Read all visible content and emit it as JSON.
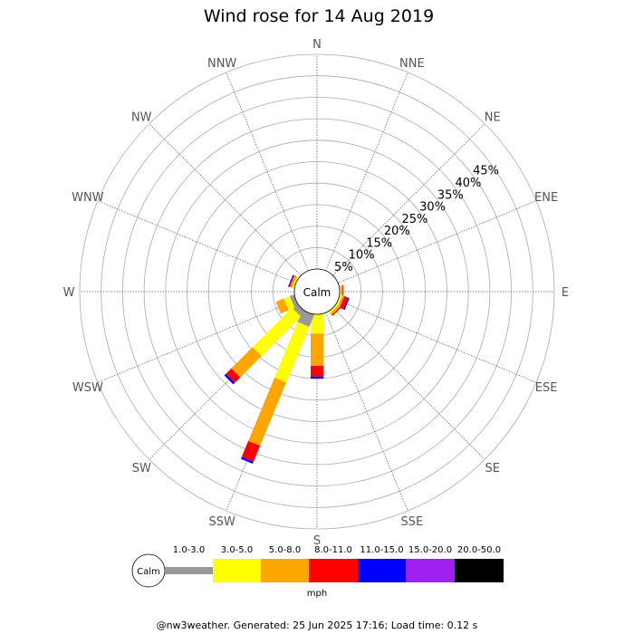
{
  "chart_data": {
    "type": "wind-rose",
    "title": "Wind rose for 14 Aug 2019",
    "directions": [
      "N",
      "NNE",
      "NE",
      "ENE",
      "E",
      "ESE",
      "SE",
      "SSE",
      "S",
      "SSW",
      "SW",
      "WSW",
      "W",
      "WNW",
      "NW",
      "NNW"
    ],
    "radial_ticks": [
      "5%",
      "10%",
      "15%",
      "20%",
      "25%",
      "30%",
      "35%",
      "40%",
      "45%"
    ],
    "rmax_percent": 50,
    "calm_label": "Calm",
    "units": "mph",
    "bins": [
      {
        "label": "1.0-3.0",
        "color": "#999999"
      },
      {
        "label": "3.0-5.0",
        "color": "#ffff00"
      },
      {
        "label": "5.0-8.0",
        "color": "#ffa500"
      },
      {
        "label": "8.0-11.0",
        "color": "#ff0000"
      },
      {
        "label": "11.0-15.0",
        "color": "#0000ff"
      },
      {
        "label": "15.0-20.0",
        "color": "#a020f0"
      },
      {
        "label": "20.0-50.0",
        "color": "#000000"
      }
    ],
    "series": [
      {
        "direction": "N",
        "values": [
          0,
          0,
          0,
          0,
          0,
          0,
          0
        ]
      },
      {
        "direction": "NNE",
        "values": [
          0,
          0,
          0,
          0,
          0,
          0,
          0
        ]
      },
      {
        "direction": "NE",
        "values": [
          0,
          0,
          0,
          0,
          0,
          0,
          0
        ]
      },
      {
        "direction": "ENE",
        "values": [
          0,
          0,
          0,
          0,
          0,
          0,
          0
        ]
      },
      {
        "direction": "E",
        "values": [
          0,
          0.3,
          0.3,
          0.2,
          0,
          0,
          0
        ]
      },
      {
        "direction": "ESE",
        "values": [
          0,
          0.5,
          0.5,
          1.0,
          0.3,
          0,
          0
        ]
      },
      {
        "direction": "SE",
        "values": [
          0,
          0.5,
          0.5,
          0.3,
          0,
          0,
          0
        ]
      },
      {
        "direction": "SSE",
        "values": [
          0,
          0,
          0,
          0,
          0,
          0,
          0
        ]
      },
      {
        "direction": "S",
        "values": [
          0,
          4.5,
          7.5,
          2.5,
          0.5,
          0,
          0
        ]
      },
      {
        "direction": "SSW",
        "values": [
          3.0,
          14.0,
          16.0,
          4.0,
          0.5,
          0,
          0
        ]
      },
      {
        "direction": "SW",
        "values": [
          1.5,
          13.0,
          7.0,
          1.8,
          0.5,
          0,
          0
        ]
      },
      {
        "direction": "WSW",
        "values": [
          1.0,
          1.5,
          2.0,
          0,
          0,
          0,
          0
        ]
      },
      {
        "direction": "W",
        "values": [
          0,
          0,
          0,
          0,
          0,
          0,
          0
        ]
      },
      {
        "direction": "WNW",
        "values": [
          0,
          0.5,
          0.5,
          0.2,
          0.2,
          0,
          0
        ]
      },
      {
        "direction": "NW",
        "values": [
          0,
          0,
          0,
          0,
          0,
          0,
          0
        ]
      },
      {
        "direction": "NNW",
        "values": [
          0,
          0,
          0,
          0,
          0,
          0,
          0
        ]
      }
    ]
  },
  "footer": "@nw3weather. Generated: 25 Jun 2025 17:16; Load time: 0.12 s"
}
